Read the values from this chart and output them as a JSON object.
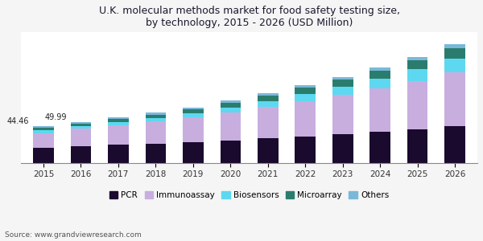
{
  "title": "U.K. molecular methods market for food safety testing size,\nby technology, 2015 - 2026 (USD Million)",
  "years": [
    2015,
    2016,
    2017,
    2018,
    2019,
    2020,
    2021,
    2022,
    2023,
    2024,
    2025,
    2026
  ],
  "categories": [
    "PCR",
    "Immunoassay",
    "Biosensors",
    "Microarray",
    "Others"
  ],
  "colors": [
    "#1a0a2e",
    "#c8aede",
    "#5dd8f0",
    "#2a7d6e",
    "#7ab8d9"
  ],
  "data": {
    "PCR": [
      18.0,
      20.0,
      22.0,
      23.5,
      25.0,
      27.5,
      30.0,
      32.5,
      35.0,
      38.0,
      41.0,
      44.5
    ],
    "Immunoassay": [
      18.5,
      21.5,
      24.0,
      27.0,
      30.5,
      34.5,
      38.5,
      43.0,
      48.0,
      53.0,
      59.0,
      66.0
    ],
    "Biosensors": [
      3.0,
      3.5,
      4.0,
      4.5,
      5.0,
      6.0,
      7.0,
      8.5,
      10.0,
      12.0,
      14.5,
      17.5
    ],
    "Microarray": [
      3.0,
      3.0,
      3.5,
      4.0,
      5.0,
      6.0,
      7.0,
      8.0,
      9.0,
      10.0,
      11.0,
      12.5
    ],
    "Others": [
      1.96,
      1.99,
      2.1,
      2.2,
      2.3,
      2.6,
      2.9,
      3.2,
      3.5,
      3.8,
      4.1,
      4.5
    ]
  },
  "annotations": {
    "2015": "44.46",
    "2016": "49.99"
  },
  "source": "Source: www.grandviewresearch.com",
  "background_color": "#ffffff",
  "title_color": "#1a1a2e",
  "bar_width": 0.55,
  "ylim": [
    0,
    160
  ]
}
